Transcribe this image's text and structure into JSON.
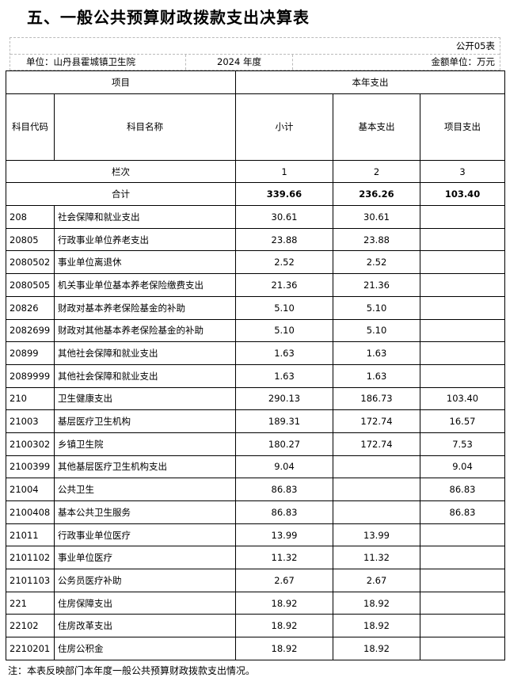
{
  "title": "五、一般公共预算财政拨款支出决算表",
  "form_no": "公开05表",
  "unit": "单位：山丹县霍城镇卫生院",
  "year": "2024 年度",
  "money_unit": "金额单位：万元",
  "headers": {
    "item": "项目",
    "current": "本年支出",
    "code": "科目代码",
    "name": "科目名称",
    "subtotal": "小计",
    "basic": "基本支出",
    "project": "项目支出",
    "col_index": "栏次",
    "c1": "1",
    "c2": "2",
    "c3": "3"
  },
  "total": {
    "label": "合计",
    "subtotal": "339.66",
    "basic": "236.26",
    "project": "103.40"
  },
  "rows": [
    {
      "code": "208",
      "name": "社会保障和就业支出",
      "subtotal": "30.61",
      "basic": "30.61",
      "project": ""
    },
    {
      "code": "20805",
      "name": "行政事业单位养老支出",
      "subtotal": "23.88",
      "basic": "23.88",
      "project": ""
    },
    {
      "code": "2080502",
      "name": "事业单位离退休",
      "subtotal": "2.52",
      "basic": "2.52",
      "project": ""
    },
    {
      "code": "2080505",
      "name": "机关事业单位基本养老保险缴费支出",
      "subtotal": "21.36",
      "basic": "21.36",
      "project": ""
    },
    {
      "code": "20826",
      "name": "财政对基本养老保险基金的补助",
      "subtotal": "5.10",
      "basic": "5.10",
      "project": ""
    },
    {
      "code": "2082699",
      "name": "财政对其他基本养老保险基金的补助",
      "subtotal": "5.10",
      "basic": "5.10",
      "project": ""
    },
    {
      "code": "20899",
      "name": "其他社会保障和就业支出",
      "subtotal": "1.63",
      "basic": "1.63",
      "project": ""
    },
    {
      "code": "2089999",
      "name": "其他社会保障和就业支出",
      "subtotal": "1.63",
      "basic": "1.63",
      "project": ""
    },
    {
      "code": "210",
      "name": "卫生健康支出",
      "subtotal": "290.13",
      "basic": "186.73",
      "project": "103.40"
    },
    {
      "code": "21003",
      "name": "基层医疗卫生机构",
      "subtotal": "189.31",
      "basic": "172.74",
      "project": "16.57"
    },
    {
      "code": "2100302",
      "name": "乡镇卫生院",
      "subtotal": "180.27",
      "basic": "172.74",
      "project": "7.53"
    },
    {
      "code": "2100399",
      "name": "其他基层医疗卫生机构支出",
      "subtotal": "9.04",
      "basic": "",
      "project": "9.04"
    },
    {
      "code": "21004",
      "name": "公共卫生",
      "subtotal": "86.83",
      "basic": "",
      "project": "86.83"
    },
    {
      "code": "2100408",
      "name": "基本公共卫生服务",
      "subtotal": "86.83",
      "basic": "",
      "project": "86.83"
    },
    {
      "code": "21011",
      "name": "行政事业单位医疗",
      "subtotal": "13.99",
      "basic": "13.99",
      "project": ""
    },
    {
      "code": "2101102",
      "name": "事业单位医疗",
      "subtotal": "11.32",
      "basic": "11.32",
      "project": ""
    },
    {
      "code": "2101103",
      "name": "公务员医疗补助",
      "subtotal": "2.67",
      "basic": "2.67",
      "project": ""
    },
    {
      "code": "221",
      "name": "住房保障支出",
      "subtotal": "18.92",
      "basic": "18.92",
      "project": ""
    },
    {
      "code": "22102",
      "name": "住房改革支出",
      "subtotal": "18.92",
      "basic": "18.92",
      "project": ""
    },
    {
      "code": "2210201",
      "name": "住房公积金",
      "subtotal": "18.92",
      "basic": "18.92",
      "project": ""
    }
  ],
  "note": "注：本表反映部门本年度一般公共预算财政拨款支出情况。"
}
